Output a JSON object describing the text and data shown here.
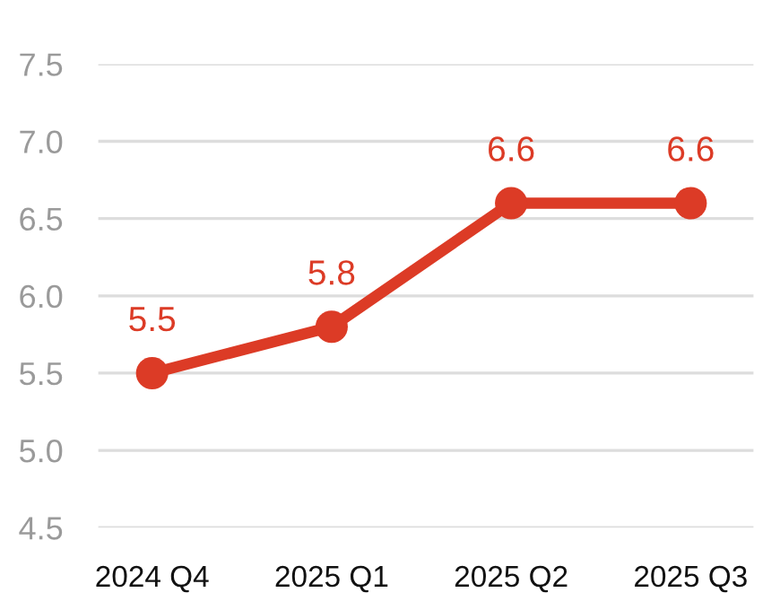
{
  "chart_data": {
    "type": "line",
    "categories": [
      "2024 Q4",
      "2025 Q1",
      "2025 Q2",
      "2025 Q3"
    ],
    "series": [
      {
        "color": "#dc3b26",
        "values": [
          5.5,
          5.8,
          6.6,
          6.6
        ]
      }
    ],
    "ylim": [
      4.5,
      7.5
    ],
    "yticks": [
      4.5,
      {
        "value": 5,
        "label": "5.0"
      },
      5.5,
      {
        "value": 6,
        "label": "6.0"
      },
      6.5,
      {
        "value": 7,
        "label": "7.0"
      },
      7.5
    ],
    "grid": "y",
    "marker": "circle",
    "line_style": "solid",
    "data_labels": true
  }
}
